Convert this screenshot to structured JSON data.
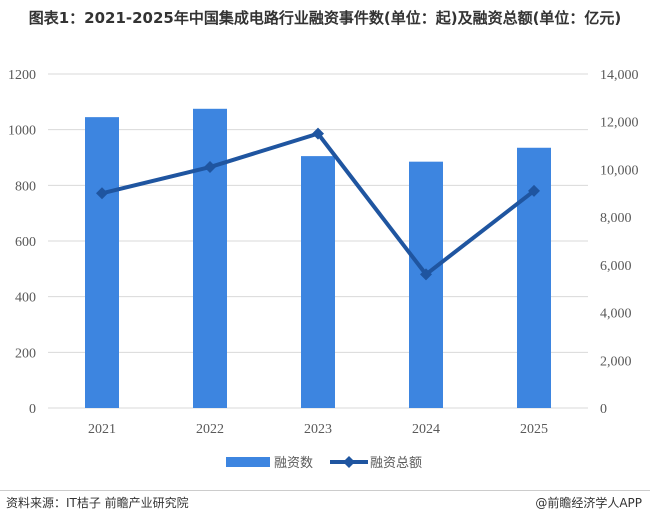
{
  "chart_data": {
    "type": "bar+line",
    "title": "图表1：2021-2025年中国集成电路行业融资事件数(单位：起)及融资总额(单位：亿元)",
    "categories": [
      "2021",
      "2022",
      "2023",
      "2024",
      "2025"
    ],
    "series": [
      {
        "name": "融资数",
        "type": "bar",
        "axis": "left",
        "values": [
          1045,
          1075,
          905,
          885,
          935
        ],
        "color": "#3d85e0"
      },
      {
        "name": "融资总额",
        "type": "line",
        "axis": "right",
        "values": [
          9000,
          10100,
          11500,
          5600,
          9100
        ],
        "color": "#1f55a0",
        "marker": "diamond"
      }
    ],
    "left_axis": {
      "ylim": [
        0,
        1200
      ],
      "ticks": [
        "0",
        "200",
        "400",
        "600",
        "800",
        "1000",
        "1200"
      ]
    },
    "right_axis": {
      "ylim": [
        0,
        14000
      ],
      "ticks": [
        "0",
        "2,000",
        "4,000",
        "6,000",
        "8,000",
        "10,000",
        "12,000",
        "14,000"
      ]
    },
    "grid": true,
    "legend": "bottom"
  },
  "footer": {
    "source": "资料来源：IT桔子 前瞻产业研究院",
    "brand": "@前瞻经济学人APP"
  },
  "watermark": "前瞻产业研究院"
}
